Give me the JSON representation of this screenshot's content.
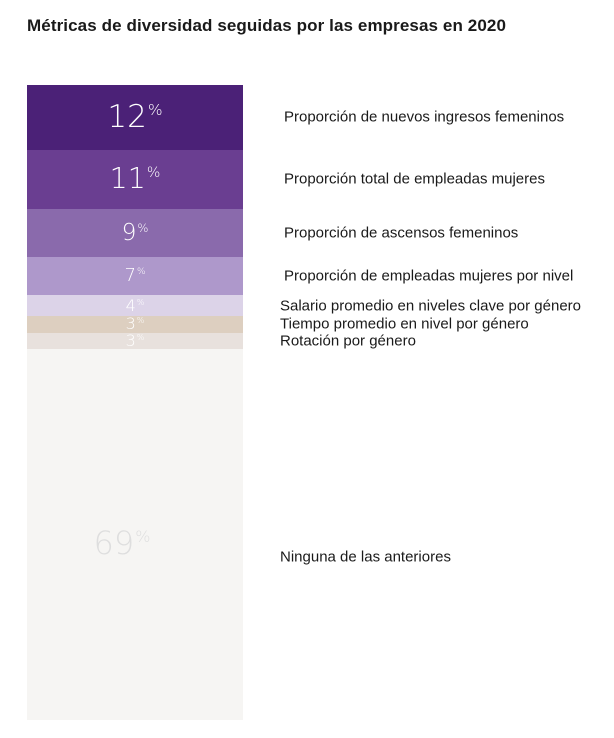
{
  "chart_data": {
    "type": "bar",
    "title": "Métricas de diversidad seguidas por las empresas en 2020",
    "unit": "%",
    "categories": [
      "Proporción de nuevos ingresos femeninos",
      "Proporción total de empleadas mujeres",
      "Proporción de ascensos femeninos",
      "Proporción de empleadas mujeres por nivel",
      "Salario promedio en niveles clave por género",
      "Tiempo promedio en nivel por género",
      "Rotación por género",
      "Ninguna de las anteriores"
    ],
    "values": [
      12,
      11,
      9,
      7,
      4,
      3,
      3,
      69
    ],
    "colors": [
      "#4b2177",
      "#6a3e91",
      "#8a6aac",
      "#ae98cb",
      "#dcd3e8",
      "#ddcfc0",
      "#e8e1dd",
      "#f6f5f3"
    ],
    "value_text_colors": [
      "#ffffff",
      "#ffffff",
      "#ffffff",
      "#ffffff",
      "#ffffff",
      "#ffffff",
      "#ffffff",
      "#dedede"
    ],
    "ylim": [
      0,
      118
    ],
    "xlabel": "",
    "ylabel": "",
    "grid": false
  }
}
